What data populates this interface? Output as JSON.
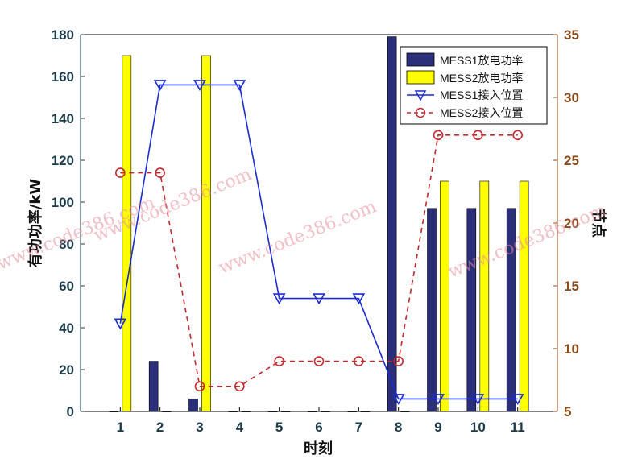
{
  "chart_data": {
    "type": "bar",
    "xlabel": "时刻",
    "ylabel_left": "有功功率/kW",
    "ylabel_right": "节点",
    "categories": [
      "1",
      "2",
      "3",
      "4",
      "5",
      "6",
      "7",
      "8",
      "9",
      "10",
      "11"
    ],
    "ylim_left": [
      0,
      180
    ],
    "yticks_left": [
      0,
      20,
      40,
      60,
      80,
      100,
      120,
      140,
      160,
      180
    ],
    "ylim_right": [
      5,
      35
    ],
    "yticks_right": [
      5,
      10,
      15,
      20,
      25,
      30,
      35
    ],
    "grid": false,
    "legend_position": "top-right",
    "bar_series": [
      {
        "name": "MESS1放电功率",
        "color": "#2b2f7a",
        "values": [
          0,
          24,
          6,
          0,
          0,
          0,
          0,
          179,
          97,
          97,
          97
        ]
      },
      {
        "name": "MESS2放电功率",
        "color": "#ffff00",
        "values": [
          170,
          0,
          170,
          0,
          0,
          0,
          0,
          0,
          110,
          110,
          110
        ]
      }
    ],
    "line_series": [
      {
        "name": "MESS1接入位置",
        "color": "#1a2ccf",
        "style": "solid",
        "marker": "triangle-down",
        "values": [
          12,
          31,
          31,
          31,
          14,
          14,
          14,
          6,
          6,
          6,
          6
        ]
      },
      {
        "name": "MESS2接入位置",
        "color": "#c0282b",
        "style": "dashed",
        "marker": "circle",
        "values": [
          24,
          24,
          7,
          7,
          9,
          9,
          9,
          9,
          27,
          27,
          27
        ]
      }
    ]
  },
  "watermarks": [
    "www.code386.com",
    "www.code386.com",
    "www.code386.com",
    "www.code386.com"
  ]
}
